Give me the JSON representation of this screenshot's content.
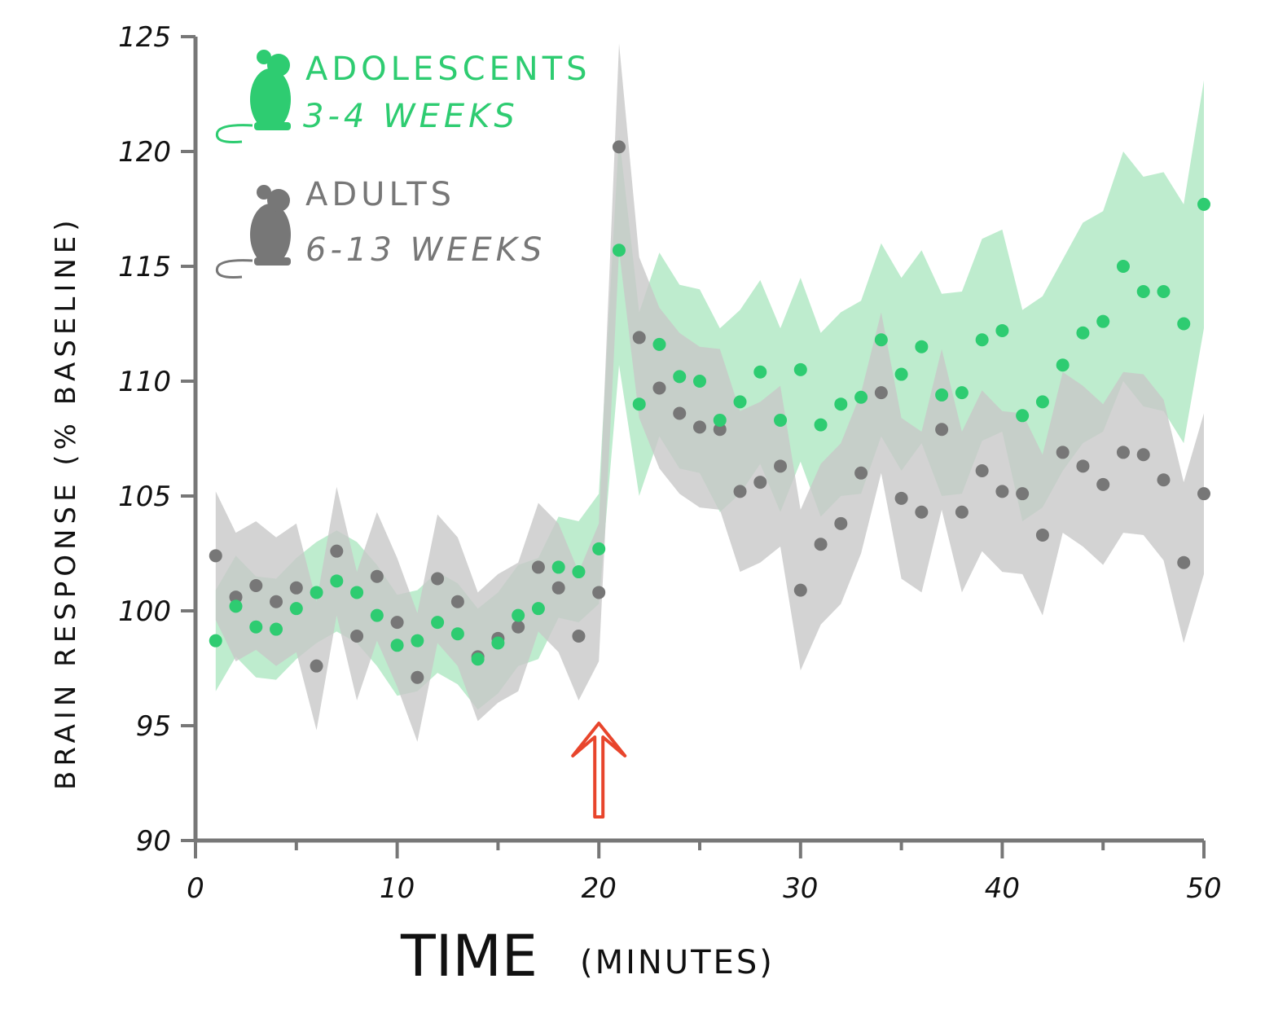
{
  "chart_data": {
    "type": "scatter",
    "xlabel": "TIME",
    "xlabel_unit": "(MINUTES)",
    "ylabel": "BRAIN RESPONSE (% BASELINE)",
    "xlim": [
      0,
      50
    ],
    "ylim": [
      90,
      125
    ],
    "xticks": [
      0,
      10,
      20,
      30,
      40,
      50
    ],
    "xminor_ticks": [
      5,
      15,
      25,
      35,
      45
    ],
    "yticks": [
      90,
      95,
      100,
      105,
      110,
      115,
      120,
      125
    ],
    "grid": false,
    "legend_placement": "top-left",
    "annotation": {
      "type": "arrow-up",
      "x": 20,
      "color": "#e8452c"
    },
    "x": [
      1,
      2,
      3,
      4,
      5,
      6,
      7,
      8,
      9,
      10,
      11,
      12,
      13,
      14,
      15,
      16,
      17,
      18,
      19,
      20,
      21,
      22,
      23,
      24,
      25,
      26,
      27,
      28,
      29,
      30,
      31,
      32,
      33,
      34,
      35,
      36,
      37,
      38,
      39,
      40,
      41,
      42,
      43,
      44,
      45,
      46,
      47,
      48,
      49,
      50
    ],
    "series": [
      {
        "name": "ADOLESCENTS",
        "sublabel": "3-4 WEEKS",
        "color": "#2ecc71",
        "band_color": "#a8e6bd",
        "icon": "mouse-icon",
        "values": [
          98.7,
          100.2,
          99.3,
          99.2,
          100.1,
          100.8,
          101.3,
          100.8,
          99.8,
          98.5,
          98.7,
          99.5,
          99.0,
          97.9,
          98.6,
          99.8,
          100.1,
          101.9,
          101.7,
          102.7,
          115.7,
          109.0,
          111.6,
          110.2,
          110.0,
          108.3,
          109.1,
          110.4,
          108.3,
          110.5,
          108.1,
          109.0,
          109.3,
          111.8,
          110.3,
          111.5,
          109.4,
          109.5,
          111.8,
          112.2,
          108.5,
          109.1,
          110.7,
          112.1,
          112.6,
          115.0,
          113.9,
          113.9,
          112.5,
          117.7
        ],
        "error": [
          2.2,
          2.2,
          2.2,
          2.2,
          2.2,
          2.2,
          2.2,
          2.2,
          2.2,
          2.2,
          2.2,
          2.2,
          2.2,
          2.2,
          2.2,
          2.2,
          2.2,
          2.2,
          2.2,
          2.4,
          5.0,
          4.0,
          4.0,
          4.0,
          4.0,
          4.0,
          4.0,
          4.0,
          4.0,
          4.0,
          4.0,
          4.0,
          4.2,
          4.2,
          4.2,
          4.2,
          4.4,
          4.4,
          4.4,
          4.4,
          4.6,
          4.6,
          4.6,
          4.8,
          4.8,
          5.0,
          5.0,
          5.2,
          5.2,
          5.4
        ]
      },
      {
        "name": "ADULTS",
        "sublabel": "6-13 WEEKS",
        "color": "#777777",
        "band_color": "#c8c8c8",
        "icon": "mouse-icon",
        "values": [
          102.4,
          100.6,
          101.1,
          100.4,
          101.0,
          97.6,
          102.6,
          98.9,
          101.5,
          99.5,
          97.1,
          101.4,
          100.4,
          98.0,
          98.8,
          99.3,
          101.9,
          101.0,
          98.9,
          100.8,
          120.2,
          111.9,
          109.7,
          108.6,
          108.0,
          107.9,
          105.2,
          105.6,
          106.3,
          100.9,
          102.9,
          103.8,
          106.0,
          109.5,
          104.9,
          104.3,
          107.9,
          104.3,
          106.1,
          105.2,
          105.1,
          103.3,
          106.9,
          106.3,
          105.5,
          106.9,
          106.8,
          105.7,
          102.1,
          105.1
        ],
        "error": [
          2.8,
          2.8,
          2.8,
          2.8,
          2.8,
          2.8,
          2.8,
          2.8,
          2.8,
          2.8,
          2.8,
          2.8,
          2.8,
          2.8,
          2.8,
          2.8,
          2.8,
          2.8,
          2.8,
          3.0,
          4.5,
          3.5,
          3.5,
          3.5,
          3.5,
          3.5,
          3.5,
          3.5,
          3.5,
          3.5,
          3.5,
          3.5,
          3.5,
          3.5,
          3.5,
          3.5,
          3.5,
          3.5,
          3.5,
          3.5,
          3.5,
          3.5,
          3.5,
          3.5,
          3.5,
          3.5,
          3.5,
          3.5,
          3.5,
          3.5
        ]
      }
    ]
  }
}
